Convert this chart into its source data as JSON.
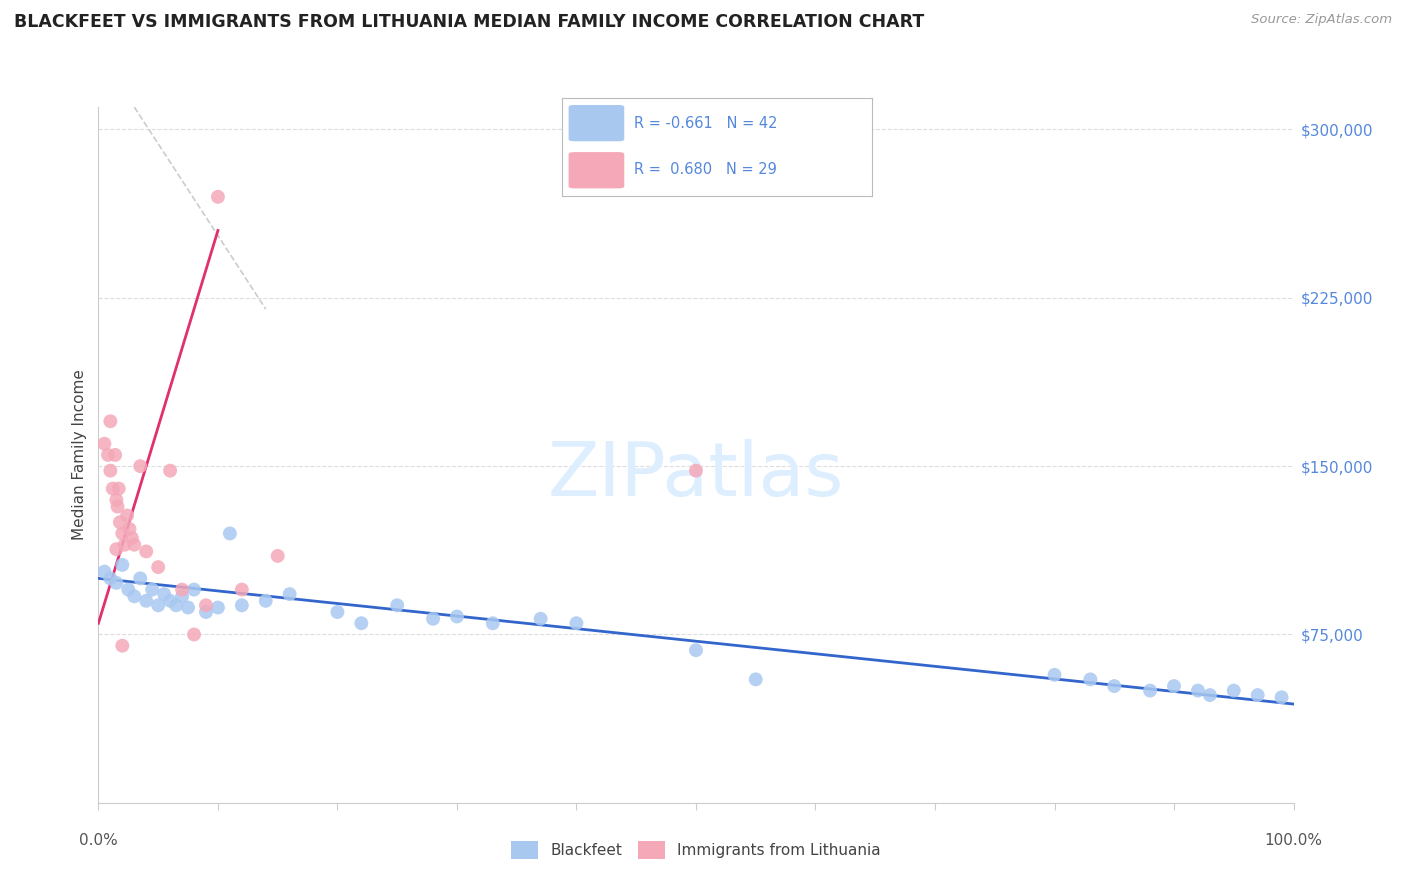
{
  "title": "BLACKFEET VS IMMIGRANTS FROM LITHUANIA MEDIAN FAMILY INCOME CORRELATION CHART",
  "source": "Source: ZipAtlas.com",
  "ylabel": "Median Family Income",
  "legend_label_blue": "Blackfeet",
  "legend_label_pink": "Immigrants from Lithuania",
  "blue_color": "#A8C8F0",
  "pink_color": "#F4A8B8",
  "blue_line_color": "#3366CC",
  "pink_line_color": "#E03070",
  "diagonal_color": "#CCCCCC",
  "background_color": "#FFFFFF",
  "ytick_color": "#5588DD",
  "text_color": "#333333",
  "blue_R": -0.661,
  "blue_N": 42,
  "pink_R": 0.68,
  "pink_N": 29,
  "blue_scatter_x": [
    0.5,
    1.0,
    1.5,
    2.0,
    2.5,
    3.0,
    3.5,
    4.0,
    4.5,
    5.0,
    5.5,
    6.0,
    6.5,
    7.0,
    7.5,
    8.0,
    9.0,
    10.0,
    11.0,
    12.0,
    14.0,
    16.0,
    20.0,
    22.0,
    25.0,
    28.0,
    30.0,
    33.0,
    37.0,
    40.0,
    50.0,
    55.0,
    80.0,
    83.0,
    85.0,
    88.0,
    90.0,
    92.0,
    93.0,
    95.0,
    97.0,
    99.0
  ],
  "blue_scatter_y": [
    103000,
    100000,
    98000,
    106000,
    95000,
    92000,
    100000,
    90000,
    95000,
    88000,
    93000,
    90000,
    88000,
    92000,
    87000,
    95000,
    85000,
    87000,
    120000,
    88000,
    90000,
    93000,
    85000,
    80000,
    88000,
    82000,
    83000,
    80000,
    82000,
    80000,
    68000,
    55000,
    57000,
    55000,
    52000,
    50000,
    52000,
    50000,
    48000,
    50000,
    48000,
    47000
  ],
  "pink_scatter_x": [
    0.5,
    0.8,
    1.0,
    1.2,
    1.4,
    1.5,
    1.6,
    1.7,
    1.8,
    2.0,
    2.2,
    2.4,
    2.6,
    2.8,
    3.0,
    3.5,
    4.0,
    5.0,
    6.0,
    7.0,
    8.0,
    9.0,
    10.0,
    12.0,
    15.0,
    50.0,
    2.0,
    1.5,
    1.0
  ],
  "pink_scatter_y": [
    160000,
    155000,
    148000,
    140000,
    155000,
    135000,
    132000,
    140000,
    125000,
    120000,
    115000,
    128000,
    122000,
    118000,
    115000,
    150000,
    112000,
    105000,
    148000,
    95000,
    75000,
    88000,
    270000,
    95000,
    110000,
    148000,
    70000,
    113000,
    170000
  ],
  "xmin": 0,
  "xmax": 100,
  "ymin": 0,
  "ymax": 310000,
  "yticks": [
    0,
    75000,
    150000,
    225000,
    300000
  ],
  "ytick_labels": [
    "",
    "$75,000",
    "$150,000",
    "$225,000",
    "$300,000"
  ],
  "pink_line_x0": 0.0,
  "pink_line_y0": 80000,
  "pink_line_x1": 10.0,
  "pink_line_y1": 255000,
  "blue_line_x0": 0.0,
  "blue_line_y0": 100000,
  "blue_line_x1": 100.0,
  "blue_line_y1": 44000,
  "diag_x0": 3.0,
  "diag_y0": 310000,
  "diag_x1": 14.0,
  "diag_y1": 220000
}
